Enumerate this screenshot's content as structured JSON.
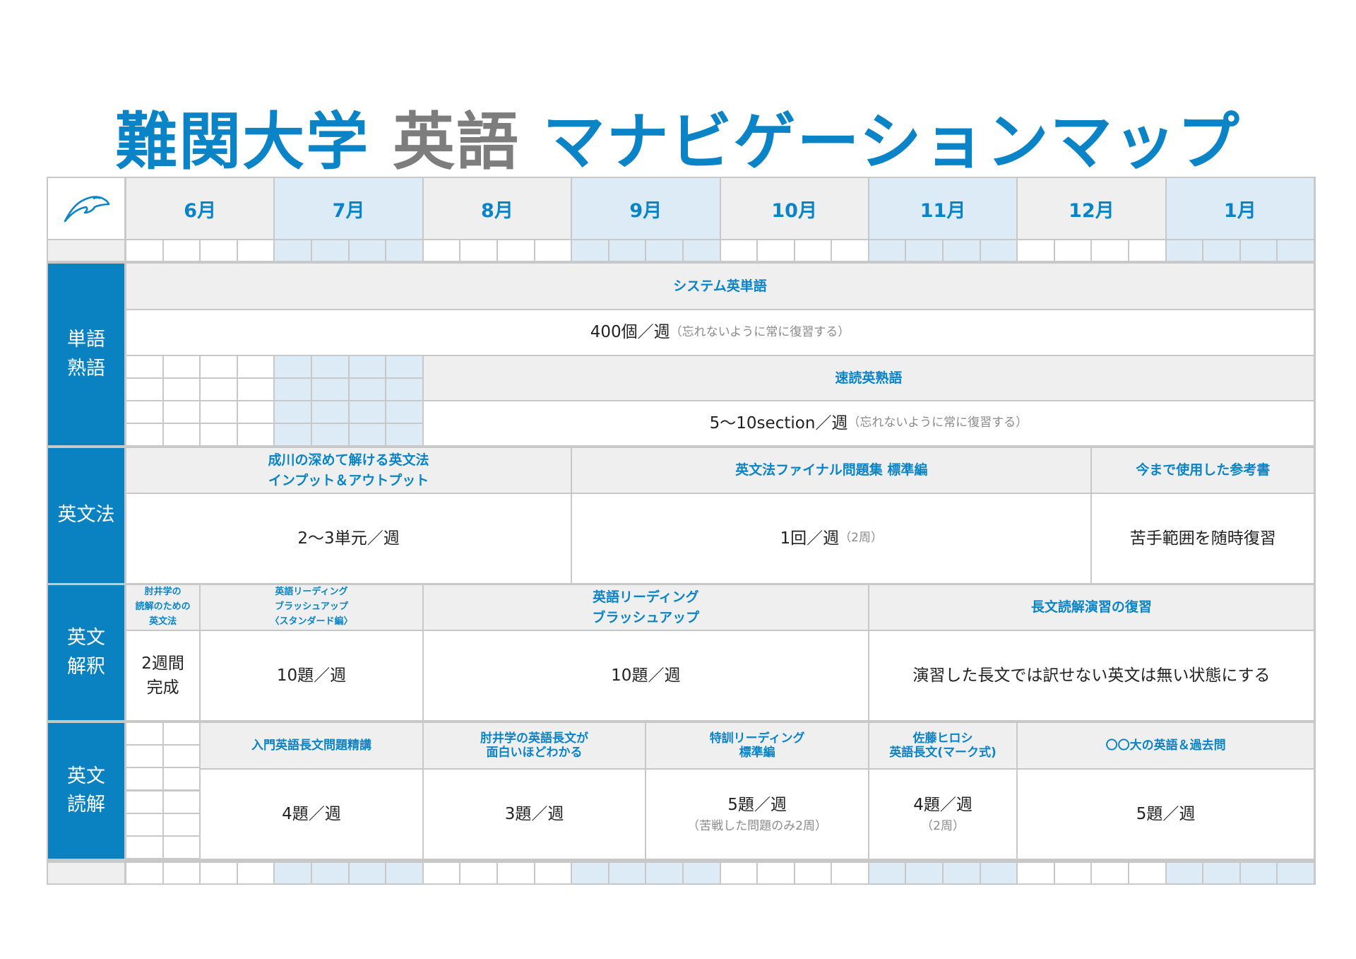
{
  "title": {
    "part1": "難関大学",
    "part2": "英語",
    "part3": "マナビゲーションマップ"
  },
  "logo": {
    "icon": "dolphin-icon"
  },
  "months": [
    "6月",
    "7月",
    "8月",
    "9月",
    "10月",
    "11月",
    "12月",
    "1月"
  ],
  "colors": {
    "accent": "#0a84c6",
    "label_bg": "#0a82c2",
    "header_bg": "#efefef",
    "alt_month_bg": "#dcebf6",
    "title_gray": "#7d7d7d"
  },
  "sections": {
    "vocab": {
      "label": "単語\n熟語",
      "book1": {
        "title": "システム英単語",
        "pace": "400個／週",
        "note": "（忘れないように常に復習する）"
      },
      "book2": {
        "title": "速読英熟語",
        "pace": "5〜10section／週",
        "note": "（忘れないように常に復習する）"
      }
    },
    "grammar": {
      "label": "英文法",
      "book1": {
        "title": "成川の深めて解ける英文法\nインプット＆アウトプット",
        "pace": "2〜3単元／週"
      },
      "book2": {
        "title": "英文法ファイナル問題集 標準編",
        "pace": "1回／週",
        "note": "（2周）"
      },
      "book3": {
        "title": "今まで使用した参考書",
        "pace": "苦手範囲を随時復習"
      }
    },
    "interpretation": {
      "label": "英文\n解釈",
      "book1": {
        "title": "肘井学の\n読解のための\n英文法",
        "pace": "2週間\n完成"
      },
      "book2": {
        "title": "英語リーディング\nブラッシュアップ\n〈スタンダード編〉",
        "pace": "10題／週"
      },
      "book3": {
        "title": "英語リーディング\nブラッシュアップ",
        "pace": "10題／週"
      },
      "book4": {
        "title": "長文読解演習の復習",
        "pace": "演習した長文では訳せない英文は無い状態にする"
      }
    },
    "reading": {
      "label": "英文\n読解",
      "book1": {
        "title": "入門英語長文問題精講",
        "pace": "4題／週"
      },
      "book2": {
        "title": "肘井学の英語長文が\n面白いほどわかる",
        "pace": "3題／週"
      },
      "book3": {
        "title": "特訓リーディング\n標準編",
        "pace": "5題／週",
        "note": "（苦戦した問題のみ2周）"
      },
      "book4": {
        "title": "佐藤ヒロシ\n英語長文(マーク式)",
        "pace": "4題／週",
        "note": "（2周）"
      },
      "book5": {
        "title": "〇〇大の英語＆過去問",
        "pace": "5題／週"
      }
    }
  }
}
